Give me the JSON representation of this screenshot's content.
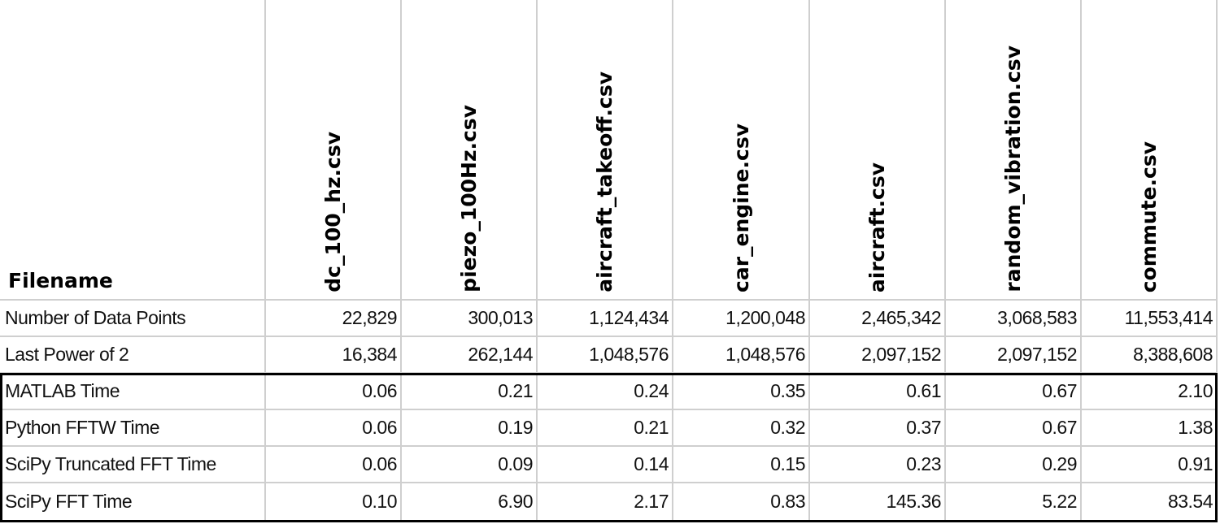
{
  "table": {
    "header": [
      "Filename",
      "dc_100_hz.csv",
      "piezo_100Hz.csv",
      "aircraft_takeoff.csv",
      "car_engine.csv",
      "aircraft.csv",
      "random_vibration.csv",
      "commute.csv"
    ],
    "rows": [
      [
        "Number of Data Points",
        "22,829",
        "300,013",
        "1,124,434",
        "1,200,048",
        "2,465,342",
        "3,068,583",
        "11,553,414"
      ],
      [
        "Last Power of 2",
        "16,384",
        "262,144",
        "1,048,576",
        "1,048,576",
        "2,097,152",
        "2,097,152",
        "8,388,608"
      ],
      [
        "MATLAB Time",
        "0.06",
        "0.21",
        "0.24",
        "0.35",
        "0.61",
        "0.67",
        "2.10"
      ],
      [
        "Python FFTW Time",
        "0.06",
        "0.19",
        "0.21",
        "0.32",
        "0.37",
        "0.67",
        "1.38"
      ],
      [
        "SciPy Truncated FFT Time",
        "0.06",
        "0.09",
        "0.14",
        "0.15",
        "0.23",
        "0.29",
        "0.91"
      ],
      [
        "SciPy FFT Time",
        "0.10",
        "6.90",
        "2.17",
        "0.83",
        "145.36",
        "5.22",
        "83.54"
      ]
    ]
  }
}
